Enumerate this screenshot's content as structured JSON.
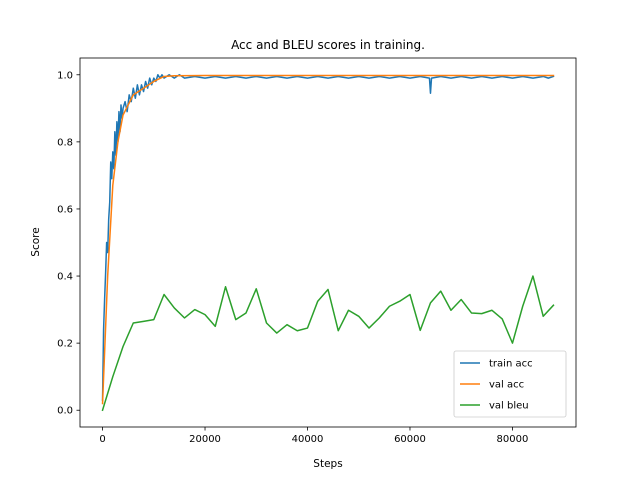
{
  "chart_data": {
    "type": "line",
    "title": "Acc and BLEU scores in training.",
    "xlabel": "Steps",
    "ylabel": "Score",
    "xlim": [
      -4400,
      92400
    ],
    "ylim": [
      -0.05,
      1.05
    ],
    "grid": false,
    "legend_position": "lower-right",
    "x_ticks": [
      0,
      20000,
      40000,
      60000,
      80000
    ],
    "x_tick_labels": [
      "0",
      "20000",
      "40000",
      "60000",
      "80000"
    ],
    "y_ticks": [
      0.0,
      0.2,
      0.4,
      0.6,
      0.8,
      1.0
    ],
    "y_tick_labels": [
      "0.0",
      "0.2",
      "0.4",
      "0.6",
      "0.8",
      "1.0"
    ],
    "series": [
      {
        "name": "train acc",
        "color": "#1f77b4",
        "x": [
          0,
          200,
          400,
          600,
          800,
          1000,
          1200,
          1400,
          1600,
          1800,
          2000,
          2200,
          2400,
          2600,
          2800,
          3000,
          3200,
          3400,
          3600,
          3800,
          4000,
          4400,
          4800,
          5200,
          5600,
          6000,
          6400,
          6800,
          7200,
          7600,
          8000,
          8400,
          8800,
          9200,
          9600,
          10000,
          10400,
          10800,
          11200,
          11600,
          12000,
          13000,
          14000,
          15000,
          16000,
          18000,
          20000,
          22000,
          24000,
          26000,
          28000,
          30000,
          32000,
          34000,
          36000,
          38000,
          40000,
          42000,
          44000,
          46000,
          48000,
          50000,
          52000,
          54000,
          56000,
          58000,
          60000,
          62000,
          63800,
          64000,
          64200,
          66000,
          68000,
          70000,
          72000,
          74000,
          76000,
          78000,
          80000,
          82000,
          84000,
          86000,
          87000,
          88000
        ],
        "y": [
          0.03,
          0.24,
          0.33,
          0.41,
          0.5,
          0.47,
          0.57,
          0.62,
          0.74,
          0.69,
          0.77,
          0.72,
          0.83,
          0.76,
          0.86,
          0.8,
          0.89,
          0.83,
          0.91,
          0.87,
          0.9,
          0.92,
          0.89,
          0.94,
          0.92,
          0.96,
          0.93,
          0.97,
          0.94,
          0.97,
          0.95,
          0.98,
          0.96,
          0.99,
          0.97,
          0.99,
          0.98,
          1.0,
          0.99,
          1.0,
          0.99,
          1.0,
          0.99,
          1.0,
          0.99,
          0.995,
          0.99,
          0.995,
          0.99,
          0.995,
          0.99,
          0.995,
          0.99,
          0.995,
          0.99,
          0.995,
          0.99,
          0.995,
          0.99,
          0.995,
          0.99,
          0.995,
          0.99,
          0.995,
          0.99,
          0.995,
          0.99,
          0.995,
          0.99,
          0.945,
          0.99,
          0.995,
          0.99,
          0.995,
          0.99,
          0.995,
          0.99,
          0.995,
          0.99,
          0.995,
          0.99,
          0.995,
          0.99,
          0.995
        ]
      },
      {
        "name": "val acc",
        "color": "#ff7f0e",
        "x": [
          0,
          1000,
          2000,
          3000,
          4000,
          5000,
          6000,
          8000,
          10000,
          12000,
          14000,
          20000,
          30000,
          40000,
          50000,
          60000,
          70000,
          80000,
          88000
        ],
        "y": [
          0.02,
          0.4,
          0.67,
          0.8,
          0.88,
          0.91,
          0.94,
          0.96,
          0.98,
          0.995,
          0.997,
          0.998,
          0.998,
          0.998,
          0.998,
          0.998,
          0.998,
          0.998,
          0.998
        ]
      },
      {
        "name": "val bleu",
        "color": "#2ca02c",
        "x": [
          0,
          2000,
          4000,
          6000,
          8000,
          10000,
          12000,
          14000,
          16000,
          18000,
          20000,
          22000,
          24000,
          26000,
          28000,
          30000,
          32000,
          34000,
          36000,
          38000,
          40000,
          42000,
          44000,
          46000,
          48000,
          50000,
          52000,
          54000,
          56000,
          58000,
          60000,
          62000,
          64000,
          66000,
          68000,
          70000,
          72000,
          74000,
          76000,
          78000,
          80000,
          82000,
          84000,
          86000,
          88000
        ],
        "y": [
          0.0,
          0.1,
          0.19,
          0.26,
          0.265,
          0.27,
          0.345,
          0.305,
          0.275,
          0.3,
          0.285,
          0.25,
          0.368,
          0.27,
          0.29,
          0.362,
          0.26,
          0.23,
          0.255,
          0.237,
          0.245,
          0.325,
          0.36,
          0.237,
          0.298,
          0.28,
          0.245,
          0.275,
          0.31,
          0.325,
          0.345,
          0.238,
          0.32,
          0.355,
          0.298,
          0.33,
          0.29,
          0.288,
          0.298,
          0.272,
          0.2,
          0.31,
          0.4,
          0.28,
          0.313
        ]
      }
    ]
  }
}
